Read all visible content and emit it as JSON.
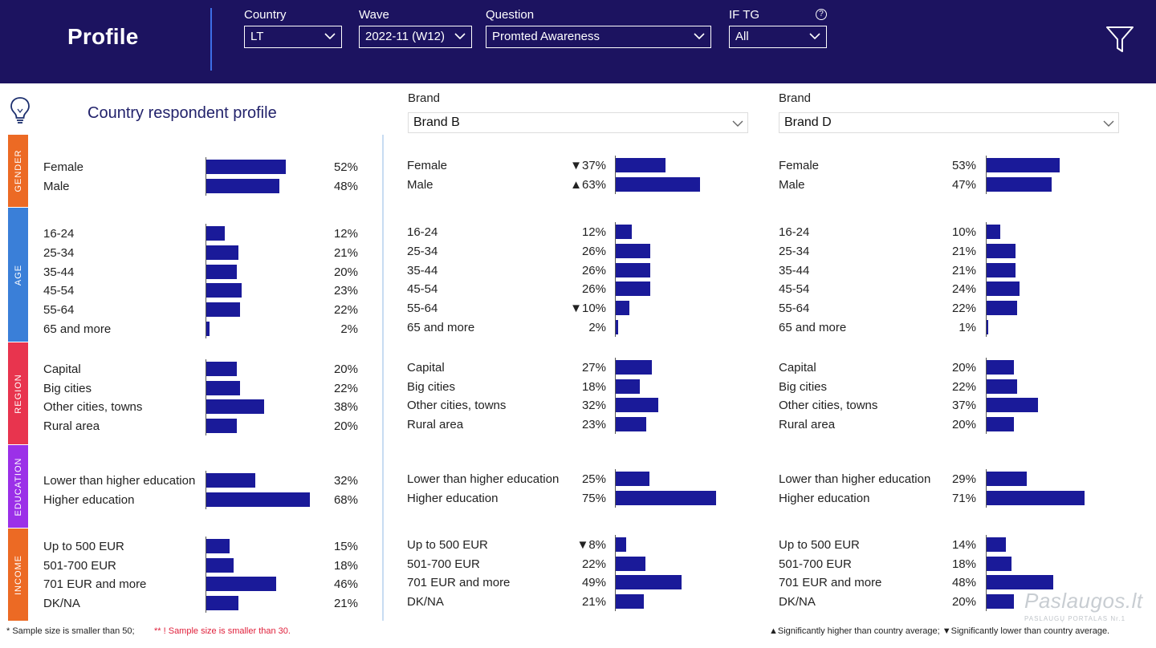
{
  "header": {
    "title": "Profile",
    "filters": [
      {
        "label": "Country",
        "value": "LT"
      },
      {
        "label": "Wave",
        "value": "2022-11 (W12)"
      },
      {
        "label": "Question",
        "value": "Promted Awareness"
      },
      {
        "label": "IF TG",
        "value": "All"
      }
    ],
    "help_symbol": "?"
  },
  "icons": {
    "bulb": "lightbulb-icon",
    "filter": "funnel-icon",
    "chevron": "chevron-down-icon"
  },
  "panel_title": "Country respondent profile",
  "brand_selectors": [
    {
      "label": "Brand",
      "value": "Brand B"
    },
    {
      "label": "Brand",
      "value": "Brand D"
    }
  ],
  "categories": [
    {
      "label": "GENDER",
      "color": "#ec6a24"
    },
    {
      "label": "AGE",
      "color": "#3a7fd8"
    },
    {
      "label": "REGION",
      "color": "#e8344e"
    },
    {
      "label": "EDUCATION",
      "color": "#9b30e8"
    },
    {
      "label": "INCOME",
      "color": "#ec6a24"
    }
  ],
  "bar_color": "#1a1a99",
  "country": {
    "groups": [
      {
        "rows": [
          {
            "label": "Female",
            "value": "52%",
            "pct": 52
          },
          {
            "label": "Male",
            "value": "48%",
            "pct": 48
          }
        ]
      },
      {
        "rows": [
          {
            "label": "16-24",
            "value": "12%",
            "pct": 12
          },
          {
            "label": "25-34",
            "value": "21%",
            "pct": 21
          },
          {
            "label": "35-44",
            "value": "20%",
            "pct": 20
          },
          {
            "label": "45-54",
            "value": "23%",
            "pct": 23
          },
          {
            "label": "55-64",
            "value": "22%",
            "pct": 22
          },
          {
            "label": "65 and more",
            "value": "2%",
            "pct": 2
          }
        ]
      },
      {
        "rows": [
          {
            "label": "Capital",
            "value": "20%",
            "pct": 20
          },
          {
            "label": "Big cities",
            "value": "22%",
            "pct": 22
          },
          {
            "label": "Other cities, towns",
            "value": "38%",
            "pct": 38
          },
          {
            "label": "Rural area",
            "value": "20%",
            "pct": 20
          }
        ]
      },
      {
        "rows": [
          {
            "label": "Lower than higher education",
            "value": "32%",
            "pct": 32
          },
          {
            "label": "Higher education",
            "value": "68%",
            "pct": 68
          }
        ]
      },
      {
        "rows": [
          {
            "label": "Up to 500 EUR",
            "value": "15%",
            "pct": 15
          },
          {
            "label": "501-700 EUR",
            "value": "18%",
            "pct": 18
          },
          {
            "label": "701 EUR and more",
            "value": "46%",
            "pct": 46
          },
          {
            "label": "DK/NA",
            "value": "21%",
            "pct": 21
          }
        ]
      }
    ]
  },
  "brand_b": {
    "groups": [
      {
        "rows": [
          {
            "label": "Female",
            "value": "▼37%",
            "pct": 37
          },
          {
            "label": "Male",
            "value": "▲63%",
            "pct": 63
          }
        ]
      },
      {
        "rows": [
          {
            "label": "16-24",
            "value": "12%",
            "pct": 12
          },
          {
            "label": "25-34",
            "value": "26%",
            "pct": 26
          },
          {
            "label": "35-44",
            "value": "26%",
            "pct": 26
          },
          {
            "label": "45-54",
            "value": "26%",
            "pct": 26
          },
          {
            "label": "55-64",
            "value": "▼10%",
            "pct": 10
          },
          {
            "label": "65 and more",
            "value": "2%",
            "pct": 2
          }
        ]
      },
      {
        "rows": [
          {
            "label": "Capital",
            "value": "27%",
            "pct": 27
          },
          {
            "label": "Big cities",
            "value": "18%",
            "pct": 18
          },
          {
            "label": "Other cities, towns",
            "value": "32%",
            "pct": 32
          },
          {
            "label": "Rural area",
            "value": "23%",
            "pct": 23
          }
        ]
      },
      {
        "rows": [
          {
            "label": "Lower than higher education",
            "value": "25%",
            "pct": 25
          },
          {
            "label": "Higher education",
            "value": "75%",
            "pct": 75
          }
        ]
      },
      {
        "rows": [
          {
            "label": "Up to 500 EUR",
            "value": "▼8%",
            "pct": 8
          },
          {
            "label": "501-700 EUR",
            "value": "22%",
            "pct": 22
          },
          {
            "label": "701 EUR and more",
            "value": "49%",
            "pct": 49
          },
          {
            "label": "DK/NA",
            "value": "21%",
            "pct": 21
          }
        ]
      }
    ]
  },
  "brand_d": {
    "groups": [
      {
        "rows": [
          {
            "label": "Female",
            "value": "53%",
            "pct": 53
          },
          {
            "label": "Male",
            "value": "47%",
            "pct": 47
          }
        ]
      },
      {
        "rows": [
          {
            "label": "16-24",
            "value": "10%",
            "pct": 10
          },
          {
            "label": "25-34",
            "value": "21%",
            "pct": 21
          },
          {
            "label": "35-44",
            "value": "21%",
            "pct": 21
          },
          {
            "label": "45-54",
            "value": "24%",
            "pct": 24
          },
          {
            "label": "55-64",
            "value": "22%",
            "pct": 22
          },
          {
            "label": "65 and more",
            "value": "1%",
            "pct": 1
          }
        ]
      },
      {
        "rows": [
          {
            "label": "Capital",
            "value": "20%",
            "pct": 20
          },
          {
            "label": "Big cities",
            "value": "22%",
            "pct": 22
          },
          {
            "label": "Other cities, towns",
            "value": "37%",
            "pct": 37
          },
          {
            "label": "Rural area",
            "value": "20%",
            "pct": 20
          }
        ]
      },
      {
        "rows": [
          {
            "label": "Lower than higher education",
            "value": "29%",
            "pct": 29
          },
          {
            "label": "Higher education",
            "value": "71%",
            "pct": 71
          }
        ]
      },
      {
        "rows": [
          {
            "label": "Up to 500 EUR",
            "value": "14%",
            "pct": 14
          },
          {
            "label": "501-700 EUR",
            "value": "18%",
            "pct": 18
          },
          {
            "label": "701 EUR and more",
            "value": "48%",
            "pct": 48
          },
          {
            "label": "DK/NA",
            "value": "20%",
            "pct": 20
          }
        ]
      }
    ]
  },
  "footer": {
    "note1": "* Sample size is smaller than 50;",
    "note2": "** ! Sample size is smaller than 30.",
    "legend": "▲Significantly higher than country average; ▼Significantly lower than country average."
  },
  "watermark": {
    "main": "Paslaugos.lt",
    "sub": "PASLAUGŲ PORTALAS   Nr.1"
  }
}
